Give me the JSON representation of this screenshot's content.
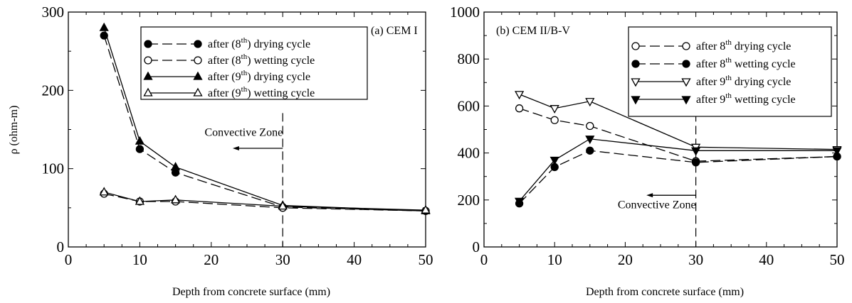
{
  "chart_data": [
    {
      "type": "line",
      "panel_label": "(a) CEM I",
      "ylabel": "ρ  (ohm-m)",
      "xlabel": "Depth from concrete surface (mm)",
      "xlim": [
        0,
        50
      ],
      "ylim": [
        0,
        300
      ],
      "x_ticks": [
        0,
        10,
        20,
        30,
        40,
        50
      ],
      "y_ticks": [
        0,
        100,
        200,
        300
      ],
      "legend_position": "top-right",
      "series": [
        {
          "name": "after (8th) drying cycle",
          "legend_pre": "after (8",
          "legend_sup": "th",
          "legend_post": ") drying cycle",
          "marker": "circle-filled",
          "line": "dashed",
          "x": [
            5,
            10,
            15,
            30,
            50
          ],
          "values": [
            270,
            125,
            95,
            51,
            46
          ]
        },
        {
          "name": "after (8th) wetting cycle",
          "legend_pre": "after  (8",
          "legend_sup": "th",
          "legend_post": ") wetting cycle",
          "marker": "circle-open",
          "line": "dashed",
          "x": [
            5,
            10,
            15,
            30,
            50
          ],
          "values": [
            68,
            58,
            58,
            50,
            46
          ]
        },
        {
          "name": "after (9th) drying cycle",
          "legend_pre": "after (9",
          "legend_sup": "th",
          "legend_post": ") drying cycle",
          "marker": "triangle-up-filled",
          "line": "solid",
          "x": [
            5,
            10,
            15,
            30,
            50
          ],
          "values": [
            280,
            135,
            102,
            53,
            46
          ]
        },
        {
          "name": "after (9th) wetting cycle",
          "legend_pre": "after (9",
          "legend_sup": "th",
          "legend_post": ") wetting cycle",
          "marker": "triangle-up-open",
          "line": "solid",
          "x": [
            5,
            10,
            15,
            30,
            50
          ],
          "values": [
            70,
            58,
            60,
            52,
            47
          ]
        }
      ],
      "annotation": {
        "text": "Convective Zone",
        "x": 30,
        "arrow_from_x": 30,
        "arrow_to_x": 23,
        "y": 126,
        "text_y": 142
      }
    },
    {
      "type": "line",
      "panel_label": "(b) CEM II/B-V",
      "ylabel": "",
      "xlabel": "Depth from concrete surface (mm)",
      "xlim": [
        0,
        50
      ],
      "ylim": [
        0,
        1000
      ],
      "x_ticks": [
        0,
        10,
        20,
        30,
        40,
        50
      ],
      "y_ticks": [
        0,
        200,
        400,
        600,
        800,
        1000
      ],
      "legend_position": "top-right",
      "series": [
        {
          "name": "after 8th drying cycle",
          "legend_pre": "after 8",
          "legend_sup": "th",
          "legend_post": "  drying cycle",
          "marker": "circle-open",
          "line": "dashed",
          "x": [
            5,
            10,
            15,
            30,
            50
          ],
          "values": [
            590,
            540,
            515,
            365,
            385
          ]
        },
        {
          "name": "after 8th wetting cycle",
          "legend_pre": "after 8",
          "legend_sup": "th",
          "legend_post": " wetting cycle",
          "marker": "circle-filled",
          "line": "dashed",
          "x": [
            5,
            10,
            15,
            30,
            50
          ],
          "values": [
            185,
            340,
            410,
            360,
            385
          ]
        },
        {
          "name": "after 9th drying cycle",
          "legend_pre": "after 9",
          "legend_sup": "th",
          "legend_post": " drying cycle",
          "marker": "triangle-down-open",
          "line": "solid",
          "x": [
            5,
            10,
            15,
            30,
            50
          ],
          "values": [
            650,
            590,
            620,
            425,
            415
          ]
        },
        {
          "name": "after 9th wetting cycle",
          "legend_pre": "after 9",
          "legend_sup": "th",
          "legend_post": " wetting cycle",
          "marker": "triangle-down-filled",
          "line": "solid",
          "x": [
            5,
            10,
            15,
            30,
            50
          ],
          "values": [
            195,
            370,
            460,
            410,
            410
          ]
        }
      ],
      "annotation": {
        "text": "Convective Zone",
        "x": 30,
        "arrow_from_x": 30,
        "arrow_to_x": 23,
        "y": 220,
        "text_y": 165
      }
    }
  ]
}
